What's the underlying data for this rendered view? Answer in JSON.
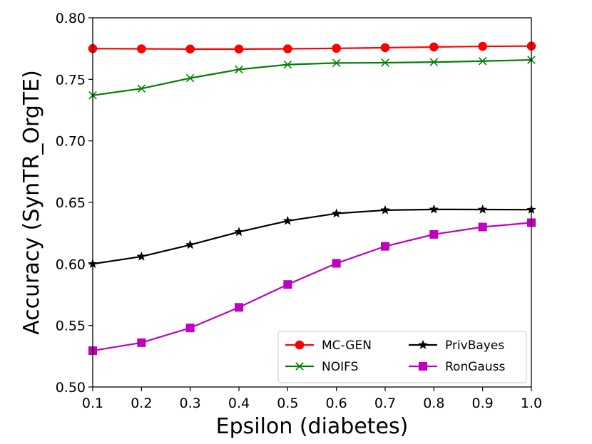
{
  "chart_data": {
    "type": "line",
    "title": "",
    "xlabel": "Epsilon (diabetes)",
    "ylabel": "Accuracy (SynTR_OrgTE)",
    "xlim": [
      0.1,
      1.0
    ],
    "ylim": [
      0.5,
      0.8
    ],
    "x": [
      0.1,
      0.2,
      0.3,
      0.4,
      0.5,
      0.6,
      0.7,
      0.8,
      0.9,
      1.0
    ],
    "xticks": [
      "0.1",
      "0.2",
      "0.3",
      "0.4",
      "0.5",
      "0.6",
      "0.7",
      "0.8",
      "0.9",
      "1.0"
    ],
    "yticks": [
      "0.50",
      "0.55",
      "0.60",
      "0.65",
      "0.70",
      "0.75",
      "0.80"
    ],
    "grid": false,
    "legend_position": "bottom-right",
    "series": [
      {
        "name": "MC-GEN",
        "color": "#ff0000",
        "marker": "circle",
        "values": [
          0.775,
          0.7748,
          0.7746,
          0.7746,
          0.7748,
          0.7752,
          0.7757,
          0.7763,
          0.7768,
          0.777
        ]
      },
      {
        "name": "NOIFS",
        "color": "#008000",
        "marker": "x",
        "values": [
          0.737,
          0.7425,
          0.751,
          0.758,
          0.762,
          0.7633,
          0.7635,
          0.764,
          0.7648,
          0.7658
        ]
      },
      {
        "name": "PrivBayes",
        "color": "#000000",
        "marker": "star",
        "values": [
          0.6,
          0.606,
          0.6155,
          0.626,
          0.635,
          0.641,
          0.6437,
          0.6443,
          0.6442,
          0.6441
        ]
      },
      {
        "name": "RonGauss",
        "color": "#bf00bf",
        "marker": "square",
        "values": [
          0.5295,
          0.536,
          0.548,
          0.5647,
          0.5833,
          0.6005,
          0.6143,
          0.624,
          0.63,
          0.6335
        ]
      }
    ]
  }
}
